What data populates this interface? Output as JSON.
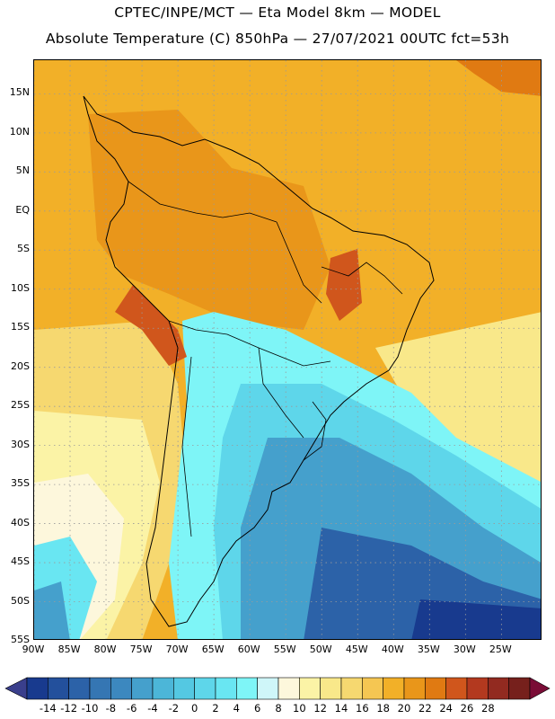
{
  "title_line1": "CPTEC/INPE/MCT —  Eta Model 8km — MODEL",
  "title_line2": "Absolute Temperature (C) 850hPa — 27/07/2021 00UTC fct=53h",
  "lat_labels": [
    "15N",
    "10N",
    "5N",
    "EQ",
    "5S",
    "10S",
    "15S",
    "20S",
    "25S",
    "30S",
    "35S",
    "40S",
    "45S",
    "50S",
    "55S"
  ],
  "lon_labels": [
    "90W",
    "85W",
    "80W",
    "75W",
    "70W",
    "65W",
    "60W",
    "55W",
    "50W",
    "45W",
    "40W",
    "35W",
    "30W",
    "25W"
  ],
  "colorbar": {
    "labels": [
      "-14",
      "-12",
      "-10",
      "-8",
      "-6",
      "-4",
      "-2",
      "0",
      "2",
      "4",
      "6",
      "8",
      "10",
      "12",
      "14",
      "16",
      "18",
      "20",
      "22",
      "24",
      "26",
      "28"
    ],
    "colors": [
      "#183a8e",
      "#23509c",
      "#2c62a8",
      "#3576b3",
      "#3c88bf",
      "#45a0cc",
      "#4cb6d8",
      "#54c8e2",
      "#5ed6ea",
      "#69e6f2",
      "#7ef5f7",
      "#cff6f9",
      "#fdf7dc",
      "#fbf3a6",
      "#f9e88a",
      "#f6d870",
      "#f5c652",
      "#f2b028",
      "#e9961a",
      "#e07a12",
      "#d0561c",
      "#b3391f",
      "#922a20",
      "#76201c"
    ],
    "low_arrow": "#3a3f8c",
    "high_arrow": "#7a0c36"
  }
}
